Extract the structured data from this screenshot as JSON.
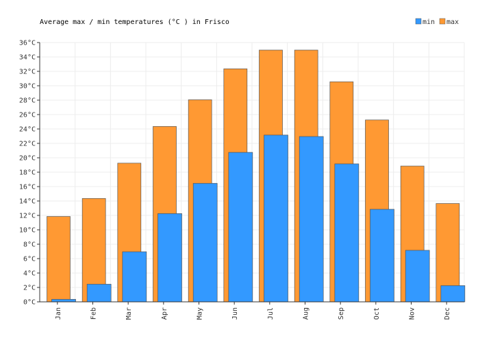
{
  "chart_data": {
    "type": "bar",
    "title": "Average max / min temperatures (°C ) in Frisco",
    "categories": [
      "Jan",
      "Feb",
      "Mar",
      "Apr",
      "May",
      "Jun",
      "Jul",
      "Aug",
      "Sep",
      "Oct",
      "Nov",
      "Dec"
    ],
    "series": [
      {
        "name": "max",
        "color": "#ff9933",
        "values": [
          11.9,
          14.4,
          19.3,
          24.4,
          28.1,
          32.4,
          35.0,
          35.0,
          30.6,
          25.3,
          18.9,
          13.7
        ]
      },
      {
        "name": "min",
        "color": "#3399ff",
        "values": [
          0.4,
          2.5,
          7.0,
          12.3,
          16.5,
          20.8,
          23.2,
          23.0,
          19.2,
          12.9,
          7.2,
          2.3
        ]
      }
    ],
    "legend": [
      {
        "label": "min",
        "color": "#3399ff"
      },
      {
        "label": "max",
        "color": "#ff9933"
      }
    ],
    "ylim": [
      0,
      36
    ],
    "ytick_step": 2,
    "ytick_suffix": "°C",
    "legend_position": "top-right",
    "grid": true
  }
}
